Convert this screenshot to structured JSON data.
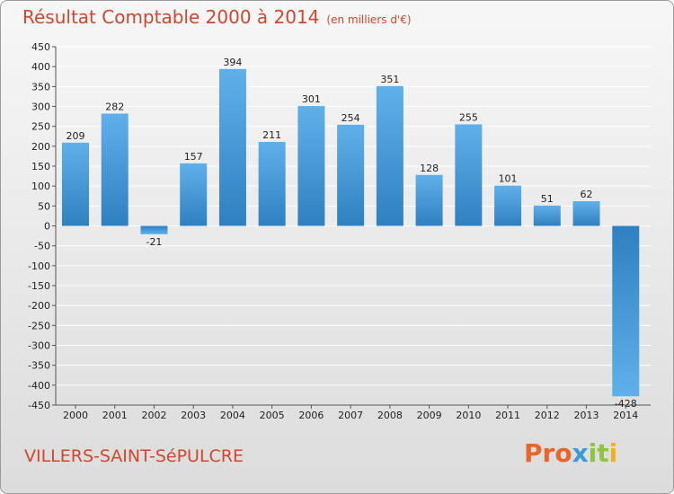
{
  "title": "Résultat Comptable 2000 à 2014",
  "subtitle": "(en milliers d'€)",
  "commune": "VILLERS-SAINT-SéPULCRE",
  "brand": {
    "part1": "Pro",
    "part2": "x",
    "part3": "it",
    "part4": "i"
  },
  "colors": {
    "title": "#d2462b",
    "bar_top": "#5fb0ea",
    "bar_bottom": "#2f80c0",
    "grid": "#ffffff"
  },
  "chart_data": {
    "type": "bar",
    "title": "Résultat Comptable 2000 à 2014",
    "xlabel": "",
    "ylabel": "en milliers d'€",
    "categories": [
      "2000",
      "2001",
      "2002",
      "2003",
      "2004",
      "2005",
      "2006",
      "2007",
      "2008",
      "2009",
      "2010",
      "2011",
      "2012",
      "2013",
      "2014"
    ],
    "values": [
      209,
      282,
      -21,
      157,
      394,
      211,
      301,
      254,
      351,
      128,
      255,
      101,
      51,
      62,
      -428
    ],
    "ylim": [
      -450,
      450
    ],
    "yticks": [
      450,
      400,
      350,
      300,
      250,
      200,
      150,
      100,
      50,
      0,
      -50,
      -100,
      -150,
      -200,
      -250,
      -300,
      -350,
      -400,
      -450
    ],
    "grid": true,
    "legend": "none"
  }
}
